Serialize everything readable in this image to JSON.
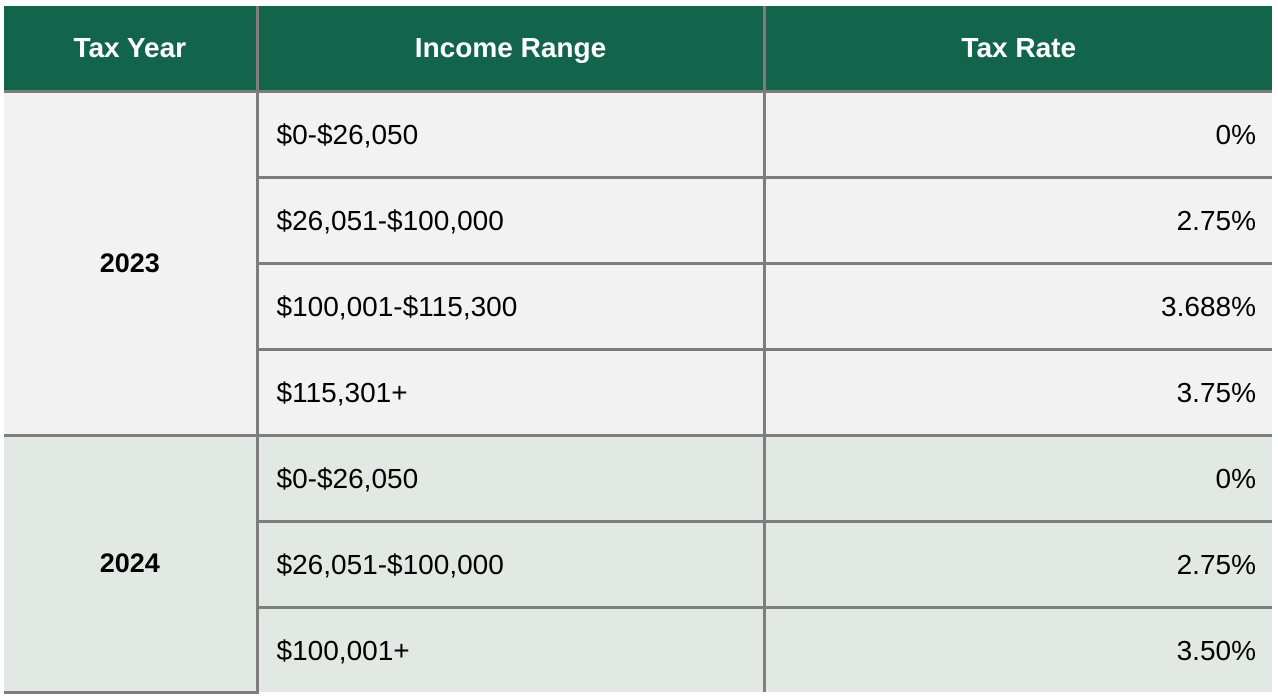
{
  "table": {
    "headers": {
      "tax_year": "Tax Year",
      "income_range": "Income Range",
      "tax_rate": "Tax Rate"
    },
    "groups": [
      {
        "year": "2023",
        "rows": [
          {
            "range": "$0-$26,050",
            "rate": "0%"
          },
          {
            "range": "$26,051-$100,000",
            "rate": "2.75%"
          },
          {
            "range": "$100,001-$115,300",
            "rate": "3.688%"
          },
          {
            "range": "$115,301+",
            "rate": "3.75%"
          }
        ]
      },
      {
        "year": "2024",
        "rows": [
          {
            "range": "$0-$26,050",
            "rate": "0%"
          },
          {
            "range": "$26,051-$100,000",
            "rate": "2.75%"
          },
          {
            "range": "$100,001+",
            "rate": "3.50%"
          }
        ]
      }
    ]
  },
  "colors": {
    "header_background": "#12644a",
    "header_text": "#ffffff",
    "group_2023_background": "#f2f2f2",
    "group_2024_background": "#e2e9e5",
    "grid_line": "#7d7d7d"
  }
}
